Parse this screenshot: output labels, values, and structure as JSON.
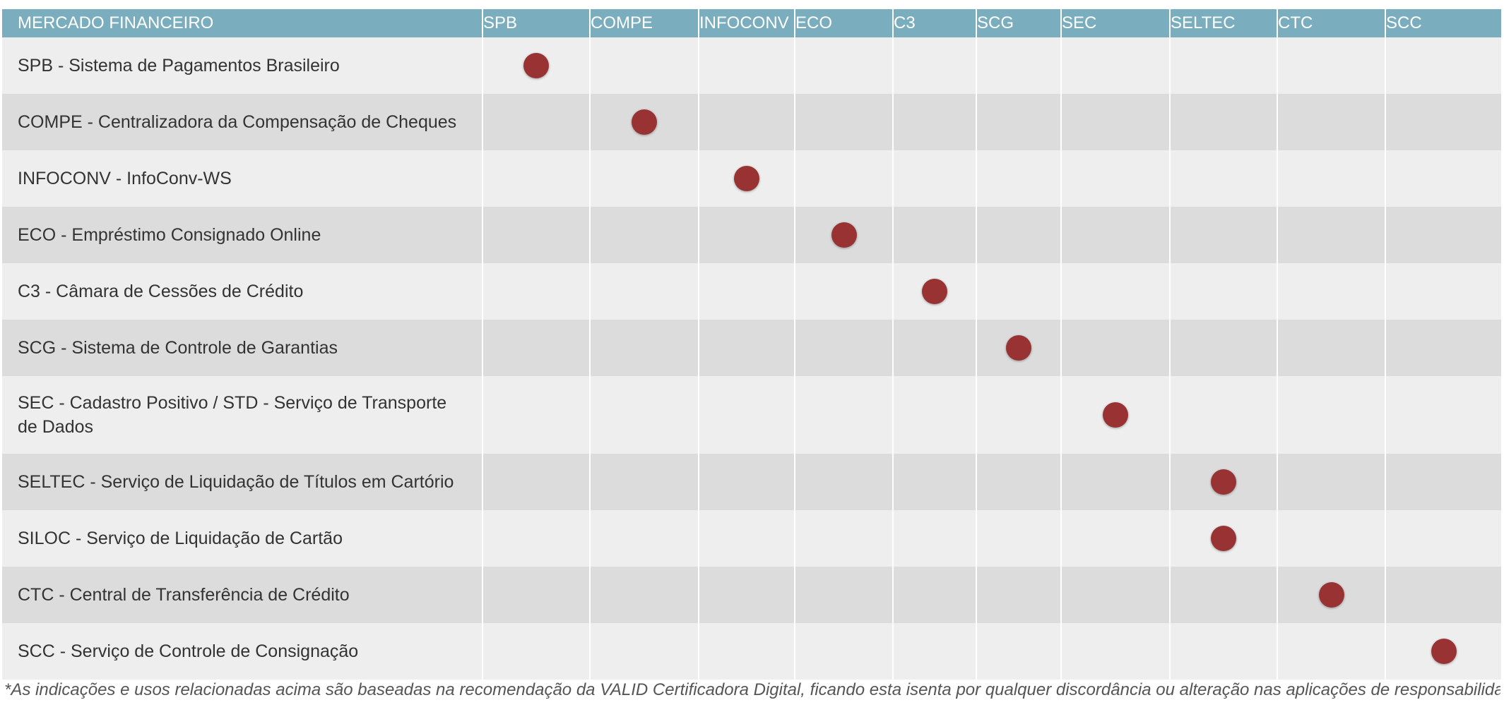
{
  "table": {
    "header": {
      "first": "MERCADO FINANCEIRO",
      "columns": [
        "SPB",
        "COMPE",
        "INFOCONV",
        "ECO",
        "C3",
        "SCG",
        "SEC",
        "SELTEC",
        "CTC",
        "SCC"
      ]
    },
    "rows": [
      {
        "label": "SPB - Sistema de Pagamentos Brasileiro",
        "marks": [
          "SPB"
        ]
      },
      {
        "label": "COMPE - Centralizadora da Compensação de Cheques",
        "marks": [
          "COMPE"
        ]
      },
      {
        "label": "INFOCONV - InfoConv-WS",
        "marks": [
          "INFOCONV"
        ]
      },
      {
        "label": "ECO - Empréstimo Consignado Online",
        "marks": [
          "ECO"
        ]
      },
      {
        "label": "C3 - Câmara de Cessões de Crédito",
        "marks": [
          "C3"
        ]
      },
      {
        "label": "SCG - Sistema de Controle de Garantias",
        "marks": [
          "SCG"
        ]
      },
      {
        "label": "SEC - Cadastro Positivo / STD - Serviço de Transporte de Dados",
        "marks": [
          "SEC"
        ]
      },
      {
        "label": "SELTEC - Serviço de Liquidação de Títulos em Cartório",
        "marks": [
          "SELTEC"
        ]
      },
      {
        "label": "SILOC - Serviço de Liquidação de Cartão",
        "marks": [
          "SELTEC"
        ]
      },
      {
        "label": "CTC - Central de Transferência de Crédito",
        "marks": [
          "CTC"
        ]
      },
      {
        "label": "SCC - Serviço de Controle de Consignação",
        "marks": [
          "SCC"
        ]
      }
    ]
  },
  "footnote": "*As indicações e usos relacionadas acima são baseadas na recomendação da VALID Certificadora Digital, ficando esta isenta por qualquer discordância ou alteração nas aplicações de responsabilidade de terceiros.",
  "colors": {
    "header_bg": "#7aaebf",
    "header_text": "#ffffff",
    "row_light": "#eeeeee",
    "row_dark": "#dcdcdc",
    "mark": "#993333"
  },
  "icons": {
    "mark": "filled-circle-icon"
  }
}
